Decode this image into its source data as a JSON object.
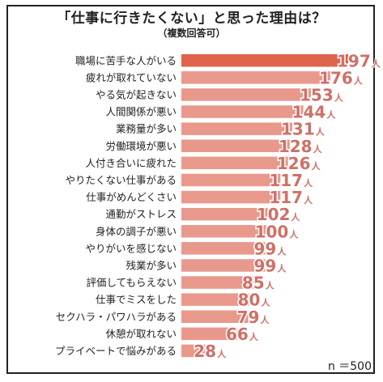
{
  "chart_data": {
    "type": "bar",
    "orientation": "horizontal",
    "title": "「仕事に行きたくない」と思った理由は？",
    "subtitle": "（複数回答可）",
    "unit": "人",
    "note": "n ＝500",
    "categories": [
      "職場に苦手な人がいる",
      "疲れが取れていない",
      "やる気が起きない",
      "人間関係が悪い",
      "業務量が多い",
      "労働環境が悪い",
      "人付き合いに疲れた",
      "やりたくない仕事がある",
      "仕事がめんどくさい",
      "通勤がストレス",
      "身体の調子が悪い",
      "やりがいを感じない",
      "残業が多い",
      "評価してもらえない",
      "仕事でミスをした",
      "セクハラ・パワハラがある",
      "休憩が取れない",
      "プライベートで悩みがある"
    ],
    "values": [
      197,
      176,
      153,
      144,
      131,
      128,
      126,
      117,
      117,
      102,
      100,
      99,
      99,
      85,
      80,
      79,
      66,
      28
    ],
    "colors": {
      "top": "#e0644c",
      "bar": "#e8998c",
      "label": "#cf7068"
    }
  }
}
